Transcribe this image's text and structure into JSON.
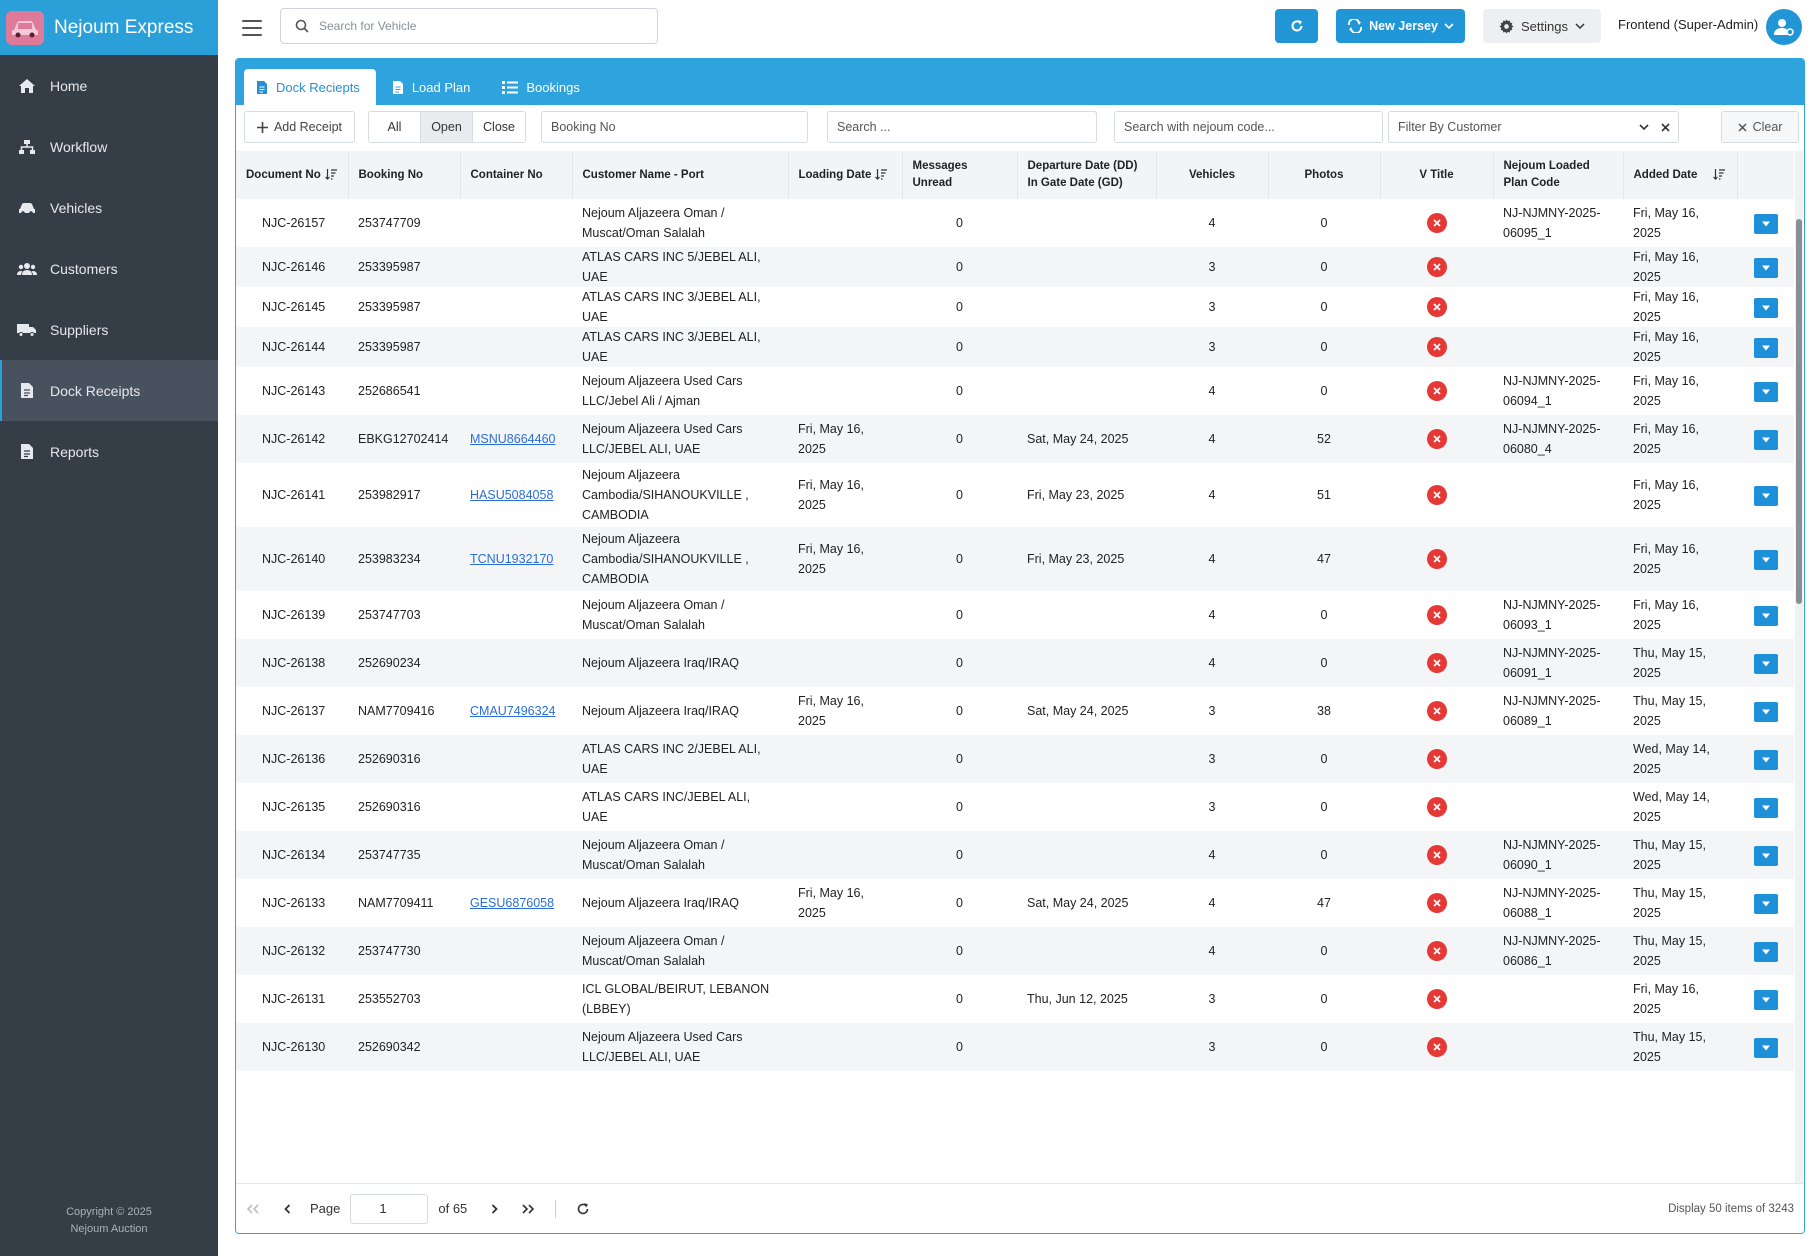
{
  "app": {
    "brand": "Nejoum Express",
    "copyright_line1": "Copyright © 2025",
    "copyright_line2": "Nejoum Auction"
  },
  "sidebar": {
    "items": [
      {
        "label": "Home",
        "icon": "home-icon"
      },
      {
        "label": "Workflow",
        "icon": "sitemap-icon"
      },
      {
        "label": "Vehicles",
        "icon": "car-icon"
      },
      {
        "label": "Customers",
        "icon": "users-icon"
      },
      {
        "label": "Suppliers",
        "icon": "truck-icon"
      },
      {
        "label": "Dock Receipts",
        "icon": "document-icon",
        "active": true
      },
      {
        "label": "Reports",
        "icon": "document-icon"
      }
    ]
  },
  "topbar": {
    "search_placeholder": "Search for Vehicle",
    "branch_label": "New Jersey",
    "settings_label": "Settings",
    "user_label": "Frontend (Super-Admin)"
  },
  "tabs": [
    {
      "label": "Dock Reciepts",
      "icon": "document-icon",
      "active": true
    },
    {
      "label": "Load Plan",
      "icon": "document-icon"
    },
    {
      "label": "Bookings",
      "icon": "list-icon"
    }
  ],
  "toolbar": {
    "add_label": "Add Receipt",
    "filters": [
      "All",
      "Open",
      "Close"
    ],
    "active_filter": "Open",
    "booking_placeholder": "Booking No",
    "search_placeholder": "Search ...",
    "nejoum_placeholder": "Search with nejoum code...",
    "customer_placeholder": "Filter By Customer",
    "clear_label": "Clear"
  },
  "colors": {
    "accent": "#2fa3de",
    "sidebar_bg": "#353d47",
    "danger": "#e53935",
    "button": "#1e90d9"
  },
  "table": {
    "columns": [
      "Document No",
      "Booking No",
      "Container No",
      "Customer Name - Port",
      "Loading Date",
      "Messages Unread",
      "Departure Date (DD) In Gate Date (GD)",
      "Vehicles",
      "Photos",
      "V Title",
      "Nejoum Loaded Plan Code",
      "Added Date"
    ],
    "rows": [
      {
        "doc": "NJC-26157",
        "booking": "253747709",
        "container": "",
        "customer": "Nejoum Aljazeera Oman / Muscat/Oman Salalah",
        "loading": "",
        "messages": "0",
        "departure": "",
        "vehicles": "4",
        "photos": "0",
        "plan": "NJ-NJMNY-2025-06095_1",
        "added": "Fri, May 16, 2025"
      },
      {
        "doc": "NJC-26146",
        "booking": "253395987",
        "container": "",
        "customer": "ATLAS CARS INC 5/JEBEL ALI, UAE",
        "loading": "",
        "messages": "0",
        "departure": "",
        "vehicles": "3",
        "photos": "0",
        "plan": "",
        "added": "Fri, May 16, 2025"
      },
      {
        "doc": "NJC-26145",
        "booking": "253395987",
        "container": "",
        "customer": "ATLAS CARS INC 3/JEBEL ALI, UAE",
        "loading": "",
        "messages": "0",
        "departure": "",
        "vehicles": "3",
        "photos": "0",
        "plan": "",
        "added": "Fri, May 16, 2025"
      },
      {
        "doc": "NJC-26144",
        "booking": "253395987",
        "container": "",
        "customer": "ATLAS CARS INC 3/JEBEL ALI, UAE",
        "loading": "",
        "messages": "0",
        "departure": "",
        "vehicles": "3",
        "photos": "0",
        "plan": "",
        "added": "Fri, May 16, 2025"
      },
      {
        "doc": "NJC-26143",
        "booking": "252686541",
        "container": "",
        "customer": "Nejoum Aljazeera Used Cars LLC/Jebel Ali / Ajman",
        "loading": "",
        "messages": "0",
        "departure": "",
        "vehicles": "4",
        "photos": "0",
        "plan": "NJ-NJMNY-2025-06094_1",
        "added": "Fri, May 16, 2025"
      },
      {
        "doc": "NJC-26142",
        "booking": "EBKG12702414",
        "container": "MSNU8664460",
        "customer": "Nejoum Aljazeera Used Cars LLC/JEBEL ALI, UAE",
        "loading": "Fri, May 16, 2025",
        "messages": "0",
        "departure": "Sat, May 24, 2025",
        "vehicles": "4",
        "photos": "52",
        "plan": "NJ-NJMNY-2025-06080_4",
        "added": "Fri, May 16, 2025"
      },
      {
        "doc": "NJC-26141",
        "booking": "253982917",
        "container": "HASU5084058",
        "customer": "Nejoum Aljazeera Cambodia/SIHANOUKVILLE , CAMBODIA",
        "loading": "Fri, May 16, 2025",
        "messages": "0",
        "departure": "Fri, May 23, 2025",
        "vehicles": "4",
        "photos": "51",
        "plan": "",
        "added": "Fri, May 16, 2025"
      },
      {
        "doc": "NJC-26140",
        "booking": "253983234",
        "container": "TCNU1932170",
        "customer": "Nejoum Aljazeera Cambodia/SIHANOUKVILLE , CAMBODIA",
        "loading": "Fri, May 16, 2025",
        "messages": "0",
        "departure": "Fri, May 23, 2025",
        "vehicles": "4",
        "photos": "47",
        "plan": "",
        "added": "Fri, May 16, 2025"
      },
      {
        "doc": "NJC-26139",
        "booking": "253747703",
        "container": "",
        "customer": "Nejoum Aljazeera Oman / Muscat/Oman Salalah",
        "loading": "",
        "messages": "0",
        "departure": "",
        "vehicles": "4",
        "photos": "0",
        "plan": "NJ-NJMNY-2025-06093_1",
        "added": "Fri, May 16, 2025"
      },
      {
        "doc": "NJC-26138",
        "booking": "252690234",
        "container": "",
        "customer": "Nejoum Aljazeera Iraq/IRAQ",
        "loading": "",
        "messages": "0",
        "departure": "",
        "vehicles": "4",
        "photos": "0",
        "plan": "NJ-NJMNY-2025-06091_1",
        "added": "Thu, May 15, 2025"
      },
      {
        "doc": "NJC-26137",
        "booking": "NAM7709416",
        "container": "CMAU7496324",
        "customer": "Nejoum Aljazeera Iraq/IRAQ",
        "loading": "Fri, May 16, 2025",
        "messages": "0",
        "departure": "Sat, May 24, 2025",
        "vehicles": "3",
        "photos": "38",
        "plan": "NJ-NJMNY-2025-06089_1",
        "added": "Thu, May 15, 2025"
      },
      {
        "doc": "NJC-26136",
        "booking": "252690316",
        "container": "",
        "customer": "ATLAS CARS INC 2/JEBEL ALI, UAE",
        "loading": "",
        "messages": "0",
        "departure": "",
        "vehicles": "3",
        "photos": "0",
        "plan": "",
        "added": "Wed, May 14, 2025"
      },
      {
        "doc": "NJC-26135",
        "booking": "252690316",
        "container": "",
        "customer": "ATLAS CARS INC/JEBEL ALI, UAE",
        "loading": "",
        "messages": "0",
        "departure": "",
        "vehicles": "3",
        "photos": "0",
        "plan": "",
        "added": "Wed, May 14, 2025"
      },
      {
        "doc": "NJC-26134",
        "booking": "253747735",
        "container": "",
        "customer": "Nejoum Aljazeera Oman / Muscat/Oman Salalah",
        "loading": "",
        "messages": "0",
        "departure": "",
        "vehicles": "4",
        "photos": "0",
        "plan": "NJ-NJMNY-2025-06090_1",
        "added": "Thu, May 15, 2025"
      },
      {
        "doc": "NJC-26133",
        "booking": "NAM7709411",
        "container": "GESU6876058",
        "customer": "Nejoum Aljazeera Iraq/IRAQ",
        "loading": "Fri, May 16, 2025",
        "messages": "0",
        "departure": "Sat, May 24, 2025",
        "vehicles": "4",
        "photos": "47",
        "plan": "NJ-NJMNY-2025-06088_1",
        "added": "Thu, May 15, 2025"
      },
      {
        "doc": "NJC-26132",
        "booking": "253747730",
        "container": "",
        "customer": "Nejoum Aljazeera Oman / Muscat/Oman Salalah",
        "loading": "",
        "messages": "0",
        "departure": "",
        "vehicles": "4",
        "photos": "0",
        "plan": "NJ-NJMNY-2025-06086_1",
        "added": "Thu, May 15, 2025"
      },
      {
        "doc": "NJC-26131",
        "booking": "253552703",
        "container": "",
        "customer": "ICL GLOBAL/BEIRUT, LEBANON (LBBEY)",
        "loading": "",
        "messages": "0",
        "departure": "Thu, Jun 12, 2025",
        "vehicles": "3",
        "photos": "0",
        "plan": "",
        "added": "Fri, May 16, 2025"
      },
      {
        "doc": "NJC-26130",
        "booking": "252690342",
        "container": "",
        "customer": "Nejoum Aljazeera Used Cars LLC/JEBEL ALI, UAE",
        "loading": "",
        "messages": "0",
        "departure": "",
        "vehicles": "3",
        "photos": "0",
        "plan": "",
        "added": "Thu, May 15, 2025"
      }
    ]
  },
  "pager": {
    "page_label": "Page",
    "page_value": "1",
    "of_label": "of 65",
    "display_label": "Display 50 items of 3243"
  }
}
